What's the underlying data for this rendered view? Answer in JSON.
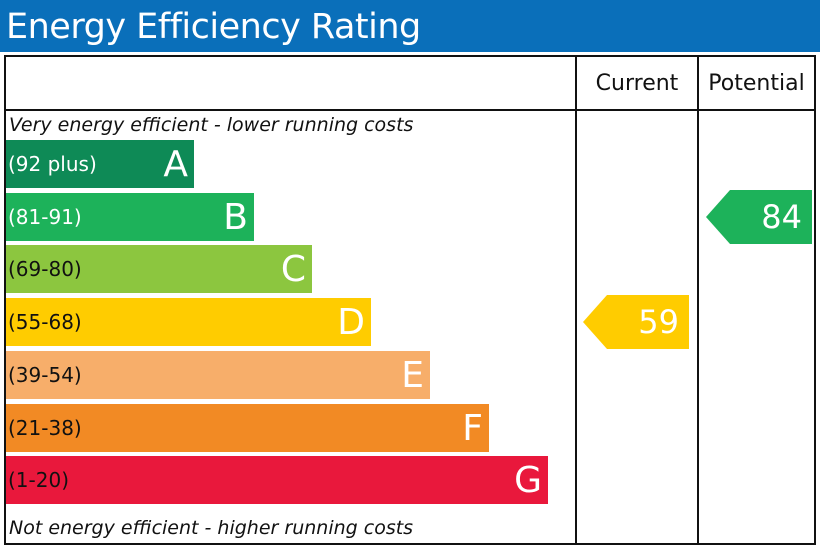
{
  "title": "Energy Efficiency Rating",
  "chart_data": {
    "type": "bar",
    "columns": [
      "Current",
      "Potential"
    ],
    "top_note": "Very energy efficient - lower running costs",
    "bottom_note": "Not energy efficient - higher running costs",
    "bands": [
      {
        "letter": "A",
        "range": "(92 plus)",
        "color": "#0e8a56",
        "text_color": "#ffffff"
      },
      {
        "letter": "B",
        "range": "(81-91)",
        "color": "#1db25a",
        "text_color": "#ffffff"
      },
      {
        "letter": "C",
        "range": "(69-80)",
        "color": "#8cc63f",
        "text_color": "#111111"
      },
      {
        "letter": "D",
        "range": "(55-68)",
        "color": "#ffcc00",
        "text_color": "#111111"
      },
      {
        "letter": "E",
        "range": "(39-54)",
        "color": "#f7ae6a",
        "text_color": "#111111"
      },
      {
        "letter": "F",
        "range": "(21-38)",
        "color": "#f28a24",
        "text_color": "#111111"
      },
      {
        "letter": "G",
        "range": "(1-20)",
        "color": "#e9183c",
        "text_color": "#111111"
      }
    ],
    "current": {
      "value": 59,
      "band": "D",
      "color": "#ffcc00"
    },
    "potential": {
      "value": 84,
      "band": "B",
      "color": "#1db25a"
    }
  }
}
